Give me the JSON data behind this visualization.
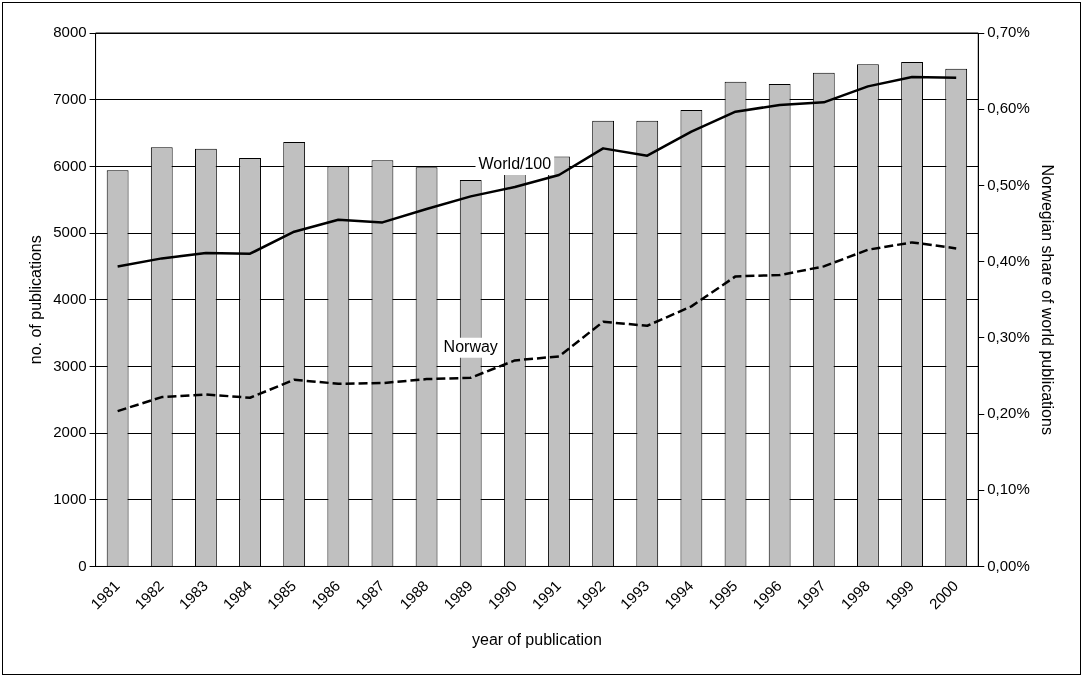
{
  "chart_data": {
    "type": "bar",
    "xlabel": "year of publication",
    "ylabel": "no. of publications",
    "y2label": "Norwegian share of world publications",
    "categories": [
      "1981",
      "1982",
      "1983",
      "1984",
      "1985",
      "1986",
      "1987",
      "1988",
      "1989",
      "1990",
      "1991",
      "1992",
      "1993",
      "1994",
      "1995",
      "1996",
      "1997",
      "1998",
      "1999",
      "2000"
    ],
    "series": [
      {
        "axis": "y2",
        "color": "#c0c0c0",
        "values": [
          0.52,
          0.55,
          0.548,
          0.536,
          0.557,
          0.525,
          0.533,
          0.524,
          0.507,
          0.54,
          0.538,
          0.585,
          0.585,
          0.599,
          0.636,
          0.633,
          0.648,
          0.659,
          0.662,
          0.653
        ]
      },
      {
        "type": "line",
        "name": "World/100",
        "color": "#000000",
        "line_style": "solid",
        "values": [
          4500,
          4620,
          4700,
          4690,
          5020,
          5200,
          5160,
          5360,
          5550,
          5690,
          5870,
          6270,
          6160,
          6520,
          6820,
          6920,
          6960,
          7200,
          7340,
          7330
        ]
      },
      {
        "type": "line",
        "name": "Norway",
        "color": "#000000",
        "line_style": "dashed",
        "values": [
          2330,
          2540,
          2580,
          2530,
          2800,
          2740,
          2750,
          2810,
          2830,
          3090,
          3150,
          3670,
          3610,
          3900,
          4350,
          4370,
          4500,
          4750,
          4860,
          4770
        ]
      }
    ],
    "ylim": [
      0,
      8000
    ],
    "yticks": [
      0,
      1000,
      2000,
      3000,
      4000,
      5000,
      6000,
      7000,
      8000
    ],
    "y2lim": [
      0,
      0.7
    ],
    "y2ticks": [
      {
        "value": 0,
        "label": "0,00%"
      },
      {
        "value": 0.1,
        "label": "0,10%"
      },
      {
        "value": 0.2,
        "label": "0,20%"
      },
      {
        "value": 0.3,
        "label": "0,30%"
      },
      {
        "value": 0.4,
        "label": "0,40%"
      },
      {
        "value": 0.5,
        "label": "0,50%"
      },
      {
        "value": 0.6,
        "label": "0,60%"
      },
      {
        "value": 0.7,
        "label": "0,70%"
      }
    ],
    "grid": "y",
    "legend": false,
    "marker": "none"
  }
}
